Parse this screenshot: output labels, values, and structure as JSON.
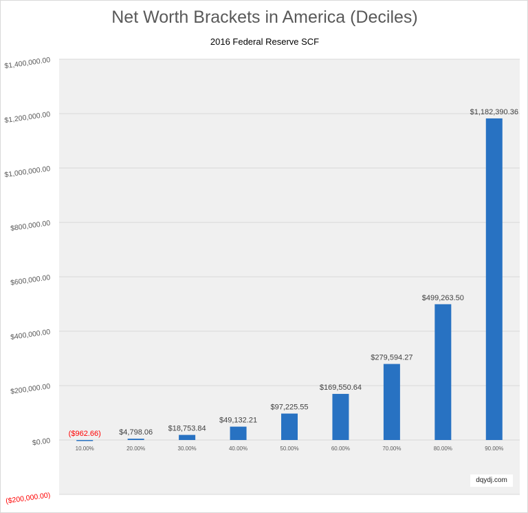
{
  "chart_data": {
    "type": "bar",
    "title": "Net Worth Brackets in America (Deciles)",
    "subtitle": "2016 Federal Reserve SCF",
    "categories": [
      "10.00%",
      "20.00%",
      "30.00%",
      "40.00%",
      "50.00%",
      "60.00%",
      "70.00%",
      "80.00%",
      "90.00%"
    ],
    "values": [
      -962.66,
      4798.06,
      18753.84,
      49132.21,
      97225.55,
      169550.64,
      279594.27,
      499263.5,
      1182390.36
    ],
    "data_labels": [
      "($962.66)",
      "$4,798.06",
      "$18,753.84",
      "$49,132.21",
      "$97,225.55",
      "$169,550.64",
      "$279,594.27",
      "$499,263.50",
      "$1,182,390.36"
    ],
    "ylim": [
      -200000,
      1400000
    ],
    "yticks": [
      -200000,
      0,
      200000,
      400000,
      600000,
      800000,
      1000000,
      1200000,
      1400000
    ],
    "ytick_labels": [
      "($200,000.00)",
      "$0.00",
      "$200,000.00",
      "$400,000.00",
      "$600,000.00",
      "$800,000.00",
      "$1,000,000.00",
      "$1,200,000.00",
      "$1,400,000.00"
    ],
    "grid": true,
    "legend": "none",
    "colors": {
      "bar": "#2872c2",
      "negative_label": "#ff0000",
      "plot_bg": "#f0f0f0"
    },
    "xlabel": "",
    "ylabel": ""
  },
  "watermark": "dqydj.com"
}
